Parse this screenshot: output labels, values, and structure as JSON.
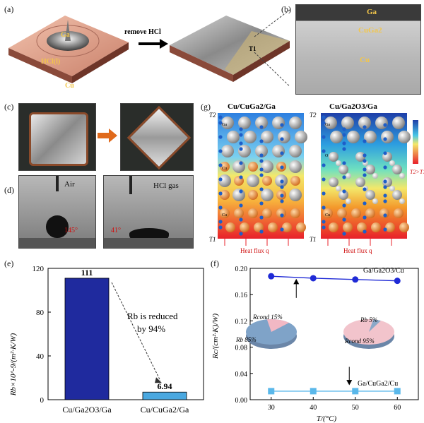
{
  "panels": {
    "a": "(a)",
    "b": "(b)",
    "c": "(c)",
    "d": "(d)",
    "e": "(e)",
    "f": "(f)",
    "g": "(g)"
  },
  "panel_a": {
    "ga": "Ga",
    "hcl": "HCl(l)",
    "cu": "Cu",
    "arrow_label": "remove HCl",
    "t1": "T1"
  },
  "panel_b": {
    "ga": "Ga",
    "cuga2": "CuGa2",
    "cu": "Cu"
  },
  "panel_d": {
    "air": "Air",
    "hcl_gas": "HCl gas",
    "angle_air": "145°",
    "angle_hcl": "41°"
  },
  "panel_g": {
    "left_title": "Cu/CuGa2/Ga",
    "right_title": "Cu/Ga2O3/Ga",
    "t2": "T2",
    "t1": "T1",
    "heat_flux": "Heat flux q",
    "legend": "T2>T1",
    "ga": "Ga",
    "cu": "Cu",
    "o": "O",
    "colors": {
      "hot": "#e8202a",
      "cold": "#1e3fa8",
      "mid": "#f5e03c"
    }
  },
  "chart_e": {
    "type": "bar",
    "categories": [
      "Cu/Ga2O3/Ga",
      "Cu/CuGa2/Ga"
    ],
    "values": [
      111,
      6.94
    ],
    "value_labels": [
      "111",
      "6.94"
    ],
    "colors": [
      "#1f2a9e",
      "#4aa8e0"
    ],
    "ylabel": "Rb×10^-9/(m²·K/W)",
    "ylim": [
      0,
      120
    ],
    "yticks": [
      0,
      40,
      80,
      120
    ],
    "annotation_line1": "Rb is reduced",
    "annotation_line2": "by 94%"
  },
  "chart_f": {
    "type": "line",
    "x": [
      30,
      40,
      50,
      60
    ],
    "series": [
      {
        "name": "Ga/Ga2O3/Cu",
        "values": [
          0.188,
          0.185,
          0.183,
          0.181
        ],
        "color": "#1f2ad6"
      },
      {
        "name": "Ga/CuGa2/Cu",
        "values": [
          0.013,
          0.013,
          0.013,
          0.013
        ],
        "color": "#5ab8ea"
      }
    ],
    "xlabel": "T/(°C)",
    "ylabel": "Rc/(cm²·K)/W)",
    "xlim": [
      25,
      65
    ],
    "ylim": [
      0,
      0.2
    ],
    "yticks": [
      0.0,
      0.04,
      0.08,
      0.12,
      0.16,
      0.2
    ],
    "ytick_labels": [
      "0.00",
      "0.04",
      "0.08",
      "0.12",
      "0.16",
      "0.20"
    ],
    "xticks": [
      30,
      40,
      50,
      60
    ],
    "pie_left": {
      "rcond_label": "Rcond 15%",
      "rb_label": "Rb 85%",
      "rcond": 15,
      "rb": 85
    },
    "pie_right": {
      "rb_label": "Rb 5%",
      "rcond_label": "Rcond 95%",
      "rcond": 95,
      "rb": 5
    }
  }
}
